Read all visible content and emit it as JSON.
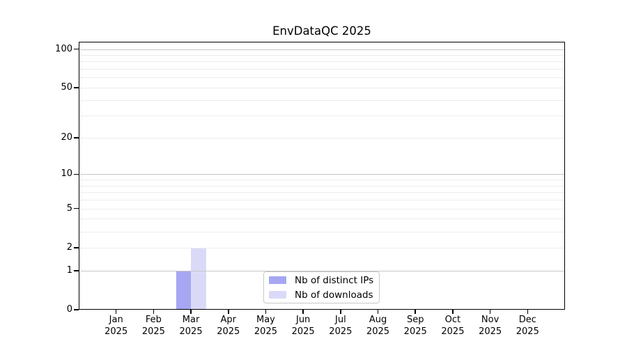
{
  "chart_data": {
    "type": "bar",
    "title": "EnvDataQC 2025",
    "xlabel": "",
    "ylabel": "",
    "x": {
      "months": [
        "Jan",
        "Feb",
        "Mar",
        "Apr",
        "May",
        "Jun",
        "Jul",
        "Aug",
        "Sep",
        "Oct",
        "Nov",
        "Dec"
      ],
      "year": "2025"
    },
    "series": [
      {
        "name": "Nb of distinct IPs",
        "color": "#a6a6f2",
        "values": [
          0,
          0,
          1,
          0,
          0,
          0,
          0,
          0,
          0,
          0,
          0,
          0
        ]
      },
      {
        "name": "Nb of downloads",
        "color": "#dadaf8",
        "values": [
          0,
          0,
          2,
          0,
          0,
          0,
          0,
          0,
          0,
          0,
          0,
          0
        ]
      }
    ],
    "y_axis": {
      "scale": "log1p",
      "min": 0,
      "max": 114,
      "ticks": [
        0,
        1,
        2,
        5,
        10,
        20,
        50,
        100
      ],
      "minor_gridlines": [
        2,
        3,
        4,
        5,
        6,
        7,
        8,
        9,
        20,
        30,
        40,
        50,
        60,
        70,
        80,
        90
      ],
      "major_gridlines": [
        1,
        10,
        100
      ]
    },
    "grid": "horizontal",
    "legend": {
      "position": "lower center",
      "items": [
        "Nb of distinct IPs",
        "Nb of downloads"
      ]
    },
    "colors": {
      "axis": "#000000",
      "grid_minor": "#ececec",
      "grid_major": "#c6c6c6",
      "legend_border": "#c8c8c8"
    }
  }
}
